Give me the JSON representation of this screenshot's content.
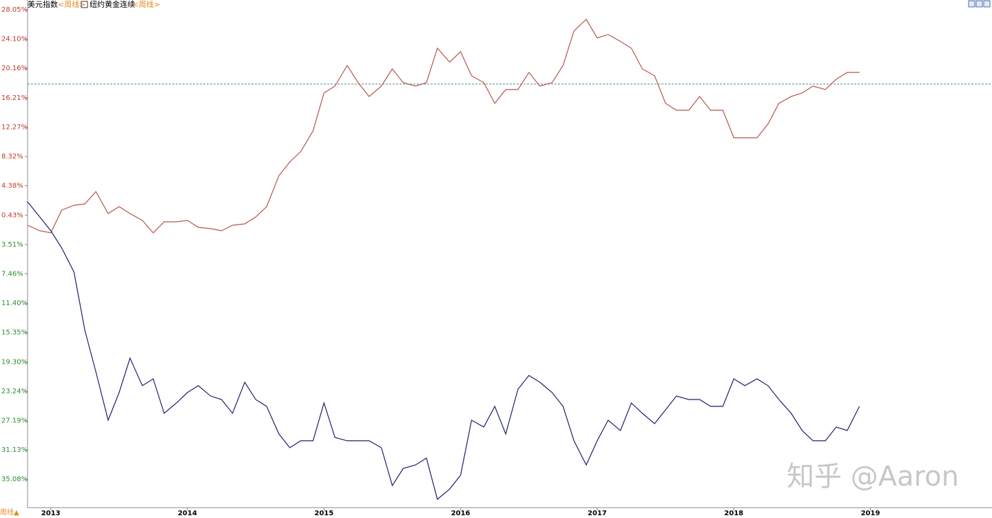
{
  "chart_data": {
    "type": "line",
    "series": [
      {
        "name": "美元指数",
        "color": "#b5544a",
        "values": [
          -0.93,
          -1.67,
          -1.95,
          1.1,
          1.75,
          1.94,
          3.6,
          0.64,
          1.57,
          0.64,
          -0.28,
          -1.95,
          -0.47,
          -0.47,
          -0.28,
          -1.21,
          -1.39,
          -1.67,
          -0.93,
          -0.75,
          0.18,
          1.57,
          5.74,
          7.59,
          8.98,
          11.75,
          16.85,
          17.77,
          20.55,
          18.24,
          16.38,
          17.77,
          20.09,
          18.24,
          17.77,
          18.24,
          22.87,
          21.01,
          22.4,
          19.16,
          18.24,
          15.46,
          17.31,
          17.31,
          19.62,
          17.77,
          18.24,
          20.55,
          25.18,
          26.75,
          24.25,
          24.71,
          23.79,
          22.87,
          20.09,
          19.16,
          15.46,
          14.53,
          14.53,
          16.38,
          14.53,
          14.53,
          10.83,
          10.83,
          10.83,
          12.68,
          15.46,
          16.38,
          16.85,
          17.77,
          17.31,
          18.7,
          19.62,
          19.62
        ]
      },
      {
        "name": "纽约黄金连续",
        "color": "#1c1c6e",
        "values": [
          2.22,
          0.18,
          -1.67,
          -3.99,
          -7.23,
          -15.1,
          -20.65,
          -27.14,
          -23.43,
          -18.8,
          -22.5,
          -21.58,
          -26.21,
          -24.82,
          -23.43,
          -22.5,
          -23.89,
          -24.36,
          -26.21,
          -22.04,
          -24.36,
          -25.28,
          -28.99,
          -30.84,
          -29.91,
          -29.91,
          -24.82,
          -29.45,
          -29.91,
          -29.91,
          -29.91,
          -30.84,
          -35.93,
          -33.62,
          -33.16,
          -32.23,
          -37.78,
          -36.39,
          -34.54,
          -27.14,
          -28.06,
          -25.28,
          -28.99,
          -22.97,
          -21.12,
          -22.04,
          -23.43,
          -25.28,
          -29.91,
          -33.16,
          -29.91,
          -27.14,
          -28.53,
          -24.82,
          -26.21,
          -27.6,
          -25.75,
          -23.89,
          -24.36,
          -24.36,
          -25.28,
          -25.28,
          -21.58,
          -22.5,
          -21.58,
          -22.5,
          -24.36,
          -26.21,
          -28.53,
          -29.91,
          -29.91,
          -28.06,
          -28.53,
          -25.28
        ]
      }
    ],
    "x": [
      2012.83,
      2012.92,
      2013.0,
      2013.08,
      2013.17,
      2013.25,
      2013.33,
      2013.42,
      2013.5,
      2013.58,
      2013.67,
      2013.75,
      2013.83,
      2013.92,
      2014.0,
      2014.08,
      2014.17,
      2014.25,
      2014.33,
      2014.42,
      2014.5,
      2014.58,
      2014.67,
      2014.75,
      2014.83,
      2014.92,
      2015.0,
      2015.08,
      2015.17,
      2015.25,
      2015.33,
      2015.42,
      2015.5,
      2015.58,
      2015.67,
      2015.75,
      2015.83,
      2015.92,
      2016.0,
      2016.08,
      2016.17,
      2016.25,
      2016.33,
      2016.42,
      2016.5,
      2016.58,
      2016.67,
      2016.75,
      2016.83,
      2016.92,
      2017.0,
      2017.08,
      2017.17,
      2017.25,
      2017.33,
      2017.42,
      2017.5,
      2017.58,
      2017.67,
      2017.75,
      2017.83,
      2017.92,
      2018.0,
      2018.08,
      2018.17,
      2018.25,
      2018.33,
      2018.42,
      2018.5,
      2018.58,
      2018.67,
      2018.75,
      2018.83,
      2018.92
    ],
    "xlim": [
      2012.83,
      2019.89
    ],
    "xticks": [
      2013,
      2014,
      2015,
      2016,
      2017,
      2018,
      2019
    ],
    "ylim": [
      -38.9,
      29.35
    ],
    "yticks": [
      {
        "value": 28.05,
        "label": "28.05%"
      },
      {
        "value": 24.1,
        "label": "24.10%"
      },
      {
        "value": 20.16,
        "label": "20.16%"
      },
      {
        "value": 16.21,
        "label": "16.21%"
      },
      {
        "value": 12.27,
        "label": "12.27%"
      },
      {
        "value": 8.32,
        "label": "8.32%"
      },
      {
        "value": 4.38,
        "label": "4.38%"
      },
      {
        "value": 0.43,
        "label": "0.43%"
      },
      {
        "value": -3.51,
        "label": "3.51%"
      },
      {
        "value": -7.46,
        "label": "7.46%"
      },
      {
        "value": -11.4,
        "label": "11.40%"
      },
      {
        "value": -15.35,
        "label": "15.35%"
      },
      {
        "value": -19.3,
        "label": "19.30%"
      },
      {
        "value": -23.24,
        "label": "23.24%"
      },
      {
        "value": -27.19,
        "label": "27.19%"
      },
      {
        "value": -31.13,
        "label": "31.13%"
      },
      {
        "value": -35.08,
        "label": "35.08%"
      }
    ],
    "tick_colors": {
      "positive": "#c0392b",
      "negative": "#2e8b2e"
    },
    "reference_line": 18.05,
    "reference_color": "#3f8a9c",
    "legend_suffix": "<周线>",
    "period_button": "周线▲",
    "watermark": "知乎 @Aaron"
  }
}
